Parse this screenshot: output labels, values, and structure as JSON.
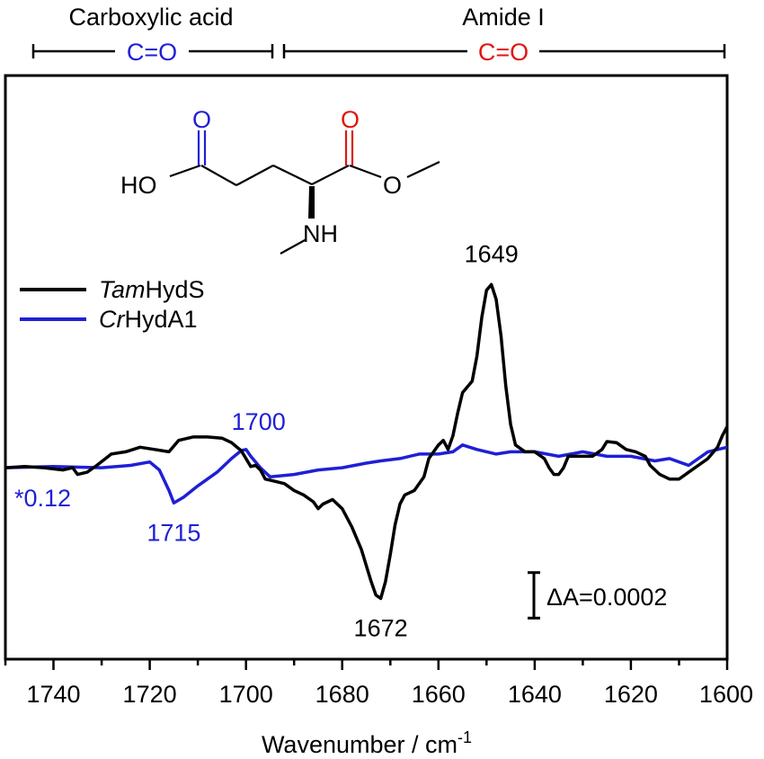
{
  "chart_data": {
    "type": "line",
    "xlabel": "Wavenumber / cm",
    "xlabel_superscript": "-1",
    "ylabel": "",
    "xlim": [
      1750,
      1600
    ],
    "x_reversed": true,
    "grid": false,
    "xticks": [
      1740,
      1720,
      1700,
      1680,
      1660,
      1640,
      1620,
      1600
    ],
    "legend_position": "top-left",
    "series": [
      {
        "name": "TamHydS",
        "name_italic": "Tam",
        "name_rest": "HydS",
        "color": "#000000",
        "points": [
          [
            1750,
            -2e-05
          ],
          [
            1746,
            -1.5e-05
          ],
          [
            1742,
            -2e-05
          ],
          [
            1738,
            -3e-05
          ],
          [
            1736,
            -2e-05
          ],
          [
            1735,
            -5e-05
          ],
          [
            1733,
            -4e-05
          ],
          [
            1731,
            -1e-05
          ],
          [
            1728,
            4e-05
          ],
          [
            1725,
            5e-05
          ],
          [
            1722,
            7e-05
          ],
          [
            1719,
            6e-05
          ],
          [
            1716,
            5e-05
          ],
          [
            1714,
            0.0001
          ],
          [
            1711,
            0.000115
          ],
          [
            1708,
            0.000115
          ],
          [
            1705,
            0.00011
          ],
          [
            1703,
            9e-05
          ],
          [
            1701,
            5.5e-05
          ],
          [
            1700,
            2e-05
          ],
          [
            1699,
            -1.5e-05
          ],
          [
            1698,
            -1e-05
          ],
          [
            1697,
            -3e-05
          ],
          [
            1696,
            -7e-05
          ],
          [
            1694,
            -8e-05
          ],
          [
            1692,
            -9e-05
          ],
          [
            1690,
            -0.00012
          ],
          [
            1688,
            -0.00014
          ],
          [
            1686,
            -0.00017
          ],
          [
            1685,
            -0.0002
          ],
          [
            1684,
            -0.00018
          ],
          [
            1683,
            -0.00017
          ],
          [
            1682,
            -0.00016
          ],
          [
            1680,
            -0.0002
          ],
          [
            1678,
            -0.00028
          ],
          [
            1676,
            -0.00038
          ],
          [
            1674,
            -0.00052
          ],
          [
            1673,
            -0.00058
          ],
          [
            1672,
            -0.000595
          ],
          [
            1671,
            -0.00052
          ],
          [
            1670,
            -0.0004
          ],
          [
            1669,
            -0.00027
          ],
          [
            1668,
            -0.00018
          ],
          [
            1667,
            -0.00014
          ],
          [
            1665,
            -0.00012
          ],
          [
            1663,
            -6e-05
          ],
          [
            1662,
            2e-05
          ],
          [
            1661,
            5e-05
          ],
          [
            1660,
            8e-05
          ],
          [
            1659,
            0.0001
          ],
          [
            1658,
            6e-05
          ],
          [
            1657,
            0.00012
          ],
          [
            1656,
            0.00022
          ],
          [
            1655,
            0.00031
          ],
          [
            1653,
            0.00036
          ],
          [
            1652,
            0.00047
          ],
          [
            1651,
            0.00064
          ],
          [
            1650,
            0.00076
          ],
          [
            1649,
            0.000785
          ],
          [
            1648,
            0.00072
          ],
          [
            1647,
            0.00056
          ],
          [
            1646,
            0.00034
          ],
          [
            1645,
            0.00017
          ],
          [
            1644,
            8e-05
          ],
          [
            1642,
            5e-05
          ],
          [
            1640,
            5e-05
          ],
          [
            1638,
            2e-05
          ],
          [
            1637,
            -2e-05
          ],
          [
            1636,
            -5e-05
          ],
          [
            1635,
            -5e-05
          ],
          [
            1634,
            -2e-05
          ],
          [
            1633,
            3e-05
          ],
          [
            1631,
            3e-05
          ],
          [
            1628,
            3e-05
          ],
          [
            1626,
            6e-05
          ],
          [
            1625,
            9.5e-05
          ],
          [
            1623,
            9e-05
          ],
          [
            1621,
            6e-05
          ],
          [
            1619,
            5e-05
          ],
          [
            1617,
            3e-05
          ],
          [
            1616,
            -1e-05
          ],
          [
            1614,
            -5e-05
          ],
          [
            1612,
            -7e-05
          ],
          [
            1610,
            -7e-05
          ],
          [
            1608,
            -4e-05
          ],
          [
            1606,
            -1e-05
          ],
          [
            1604,
            2e-05
          ],
          [
            1602,
            7e-05
          ],
          [
            1601,
            0.00012
          ],
          [
            1600,
            0.00016
          ]
        ]
      },
      {
        "name": "CrHydA1",
        "name_italic": "Cr",
        "name_rest": "HydA1",
        "color": "#1f1fd6",
        "points": [
          [
            1750,
            -2e-05
          ],
          [
            1740,
            -1.5e-05
          ],
          [
            1730,
            -2e-05
          ],
          [
            1724,
            -1e-05
          ],
          [
            1720,
            5e-06
          ],
          [
            1718,
            -3e-05
          ],
          [
            1716,
            -0.00012
          ],
          [
            1715,
            -0.000175
          ],
          [
            1713,
            -0.00015
          ],
          [
            1710,
            -0.0001
          ],
          [
            1706,
            -4e-05
          ],
          [
            1703,
            2e-05
          ],
          [
            1701,
            5.5e-05
          ],
          [
            1700,
            6e-05
          ],
          [
            1699,
            3e-05
          ],
          [
            1697,
            -2e-05
          ],
          [
            1695,
            -6e-05
          ],
          [
            1690,
            -5e-05
          ],
          [
            1685,
            -3e-05
          ],
          [
            1680,
            -2e-05
          ],
          [
            1675,
            0.0
          ],
          [
            1672,
            1e-05
          ],
          [
            1668,
            2e-05
          ],
          [
            1664,
            4e-05
          ],
          [
            1660,
            4e-05
          ],
          [
            1657,
            5e-05
          ],
          [
            1655,
            8e-05
          ],
          [
            1652,
            6e-05
          ],
          [
            1648,
            4e-05
          ],
          [
            1645,
            5e-05
          ],
          [
            1640,
            5e-05
          ],
          [
            1635,
            3e-05
          ],
          [
            1630,
            5e-05
          ],
          [
            1625,
            3e-05
          ],
          [
            1620,
            3e-05
          ],
          [
            1615,
            1e-05
          ],
          [
            1612,
            2e-05
          ],
          [
            1608,
            -1e-05
          ],
          [
            1604,
            5e-05
          ],
          [
            1600,
            7e-05
          ]
        ]
      }
    ],
    "peak_labels": [
      {
        "text": "1649",
        "x": 1649,
        "y": 0.000785,
        "color": "#000000"
      },
      {
        "text": "1672",
        "x": 1672,
        "y": -0.000595,
        "color": "#000000"
      },
      {
        "text": "1700",
        "x": 1700,
        "y": 6e-05,
        "color": "#1f1fd6"
      },
      {
        "text": "1715",
        "x": 1715,
        "y": -0.000175,
        "color": "#1f1fd6"
      }
    ],
    "annotations": {
      "scale_factor": "*0.12",
      "scale_bar": "ΔA=0.0002",
      "scale_bar_value": 0.0002,
      "region_left": {
        "title": "Carboxylic acid",
        "group": "C=O",
        "color": "#1f1fd6",
        "x_from": 1750,
        "x_to": 1694
      },
      "region_right": {
        "title": "Amide I",
        "group": "C=O",
        "color": "#e0160f",
        "x_from": 1694,
        "x_to": 1600
      }
    },
    "structure": {
      "acid_O": "O",
      "acid_OH": "HO",
      "ester_O_carbonyl": "O",
      "ester_O": "O",
      "amine": "NH",
      "acid_color": "#1f1fd6",
      "ester_color": "#e0160f"
    }
  }
}
